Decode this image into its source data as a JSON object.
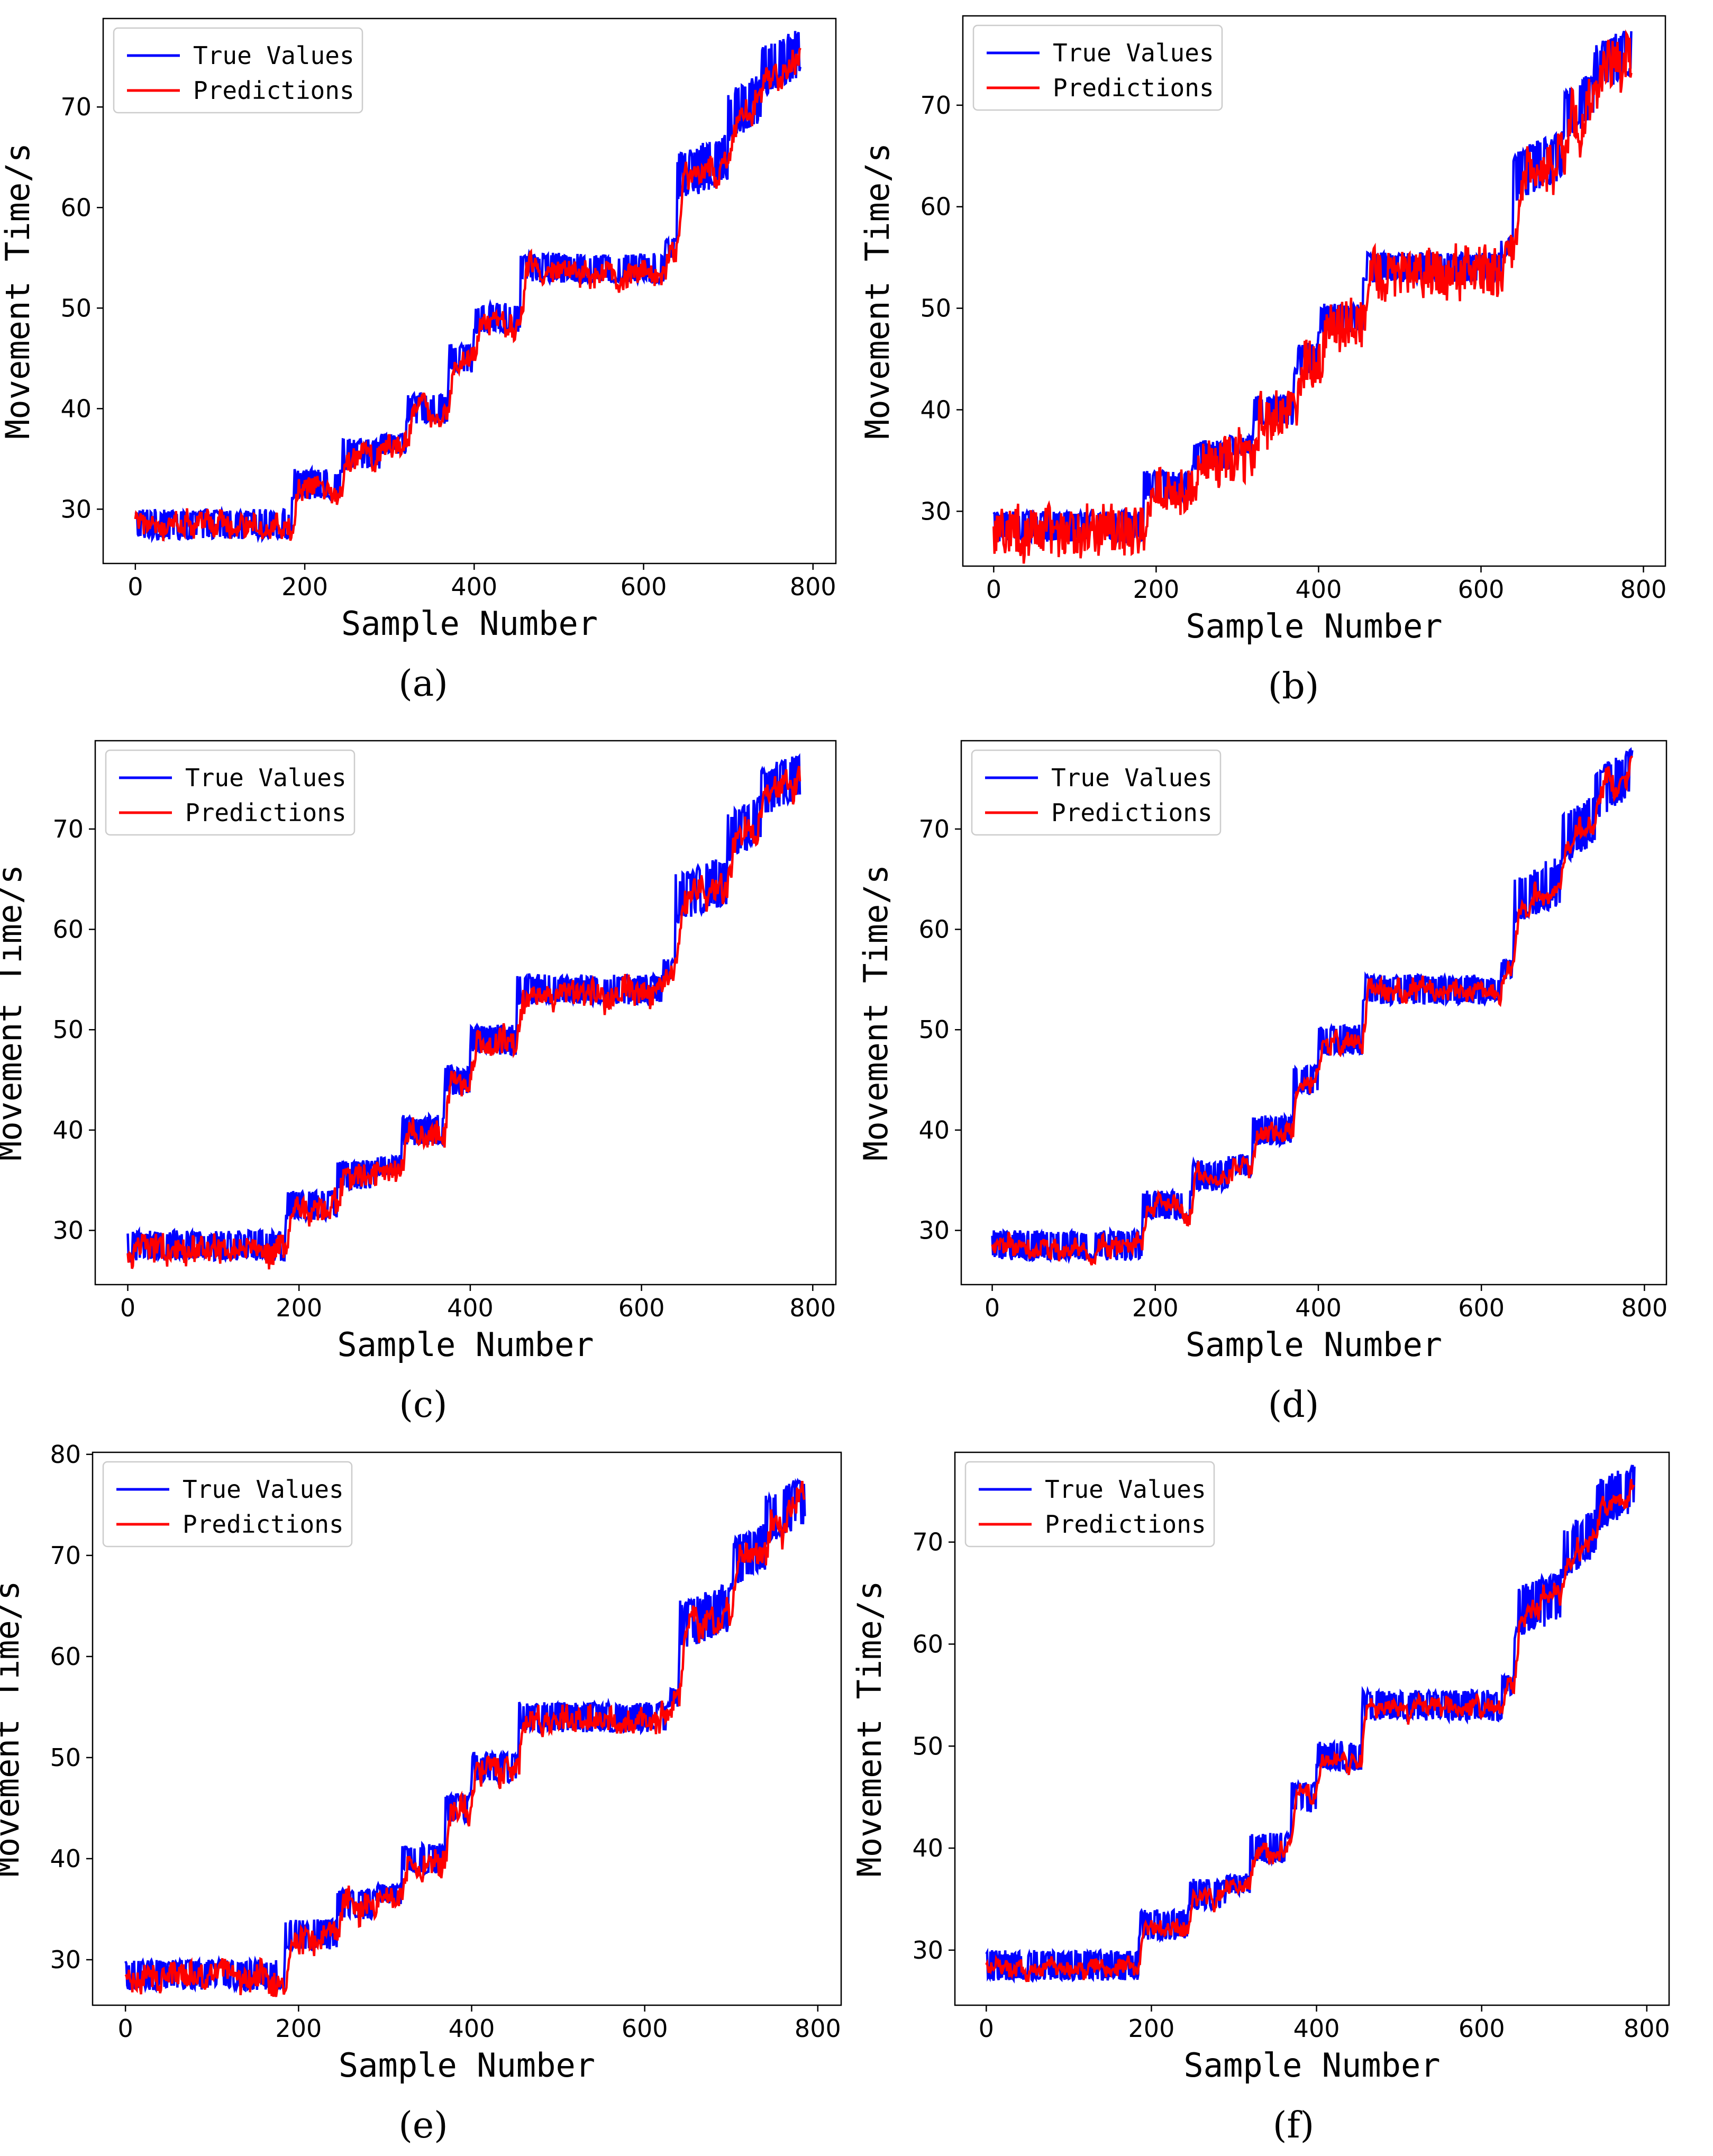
{
  "colors": {
    "true_values": "#0000ff",
    "predictions": "#ff0000"
  },
  "chart_data": [
    {
      "panel": "a",
      "caption": "(a)",
      "type": "line",
      "xlabel": "Sample Number",
      "ylabel": "Movement Time/s",
      "xlim": [
        -38,
        827
      ],
      "ylim": [
        24.6,
        78.8
      ],
      "xticks": [
        "0",
        "200",
        "400",
        "600",
        "800"
      ],
      "yticks": [
        "30",
        "40",
        "50",
        "60",
        "70"
      ],
      "legend": {
        "position": "top-left",
        "entries": [
          "True Values",
          "Predictions"
        ]
      },
      "grid": false,
      "pred_error": 1.0,
      "pred_lag": 4,
      "series": [
        {
          "name": "True Values",
          "color": "#0000ff",
          "segments": [
            [
              0,
              185,
              28.5,
              1.5
            ],
            [
              185,
              245,
              32.5,
              1.5
            ],
            [
              245,
              290,
              35.5,
              1.5
            ],
            [
              290,
              320,
              36.5,
              1.0
            ],
            [
              320,
              370,
              40,
              1.5
            ],
            [
              370,
              400,
              45,
              1.5
            ],
            [
              400,
              455,
              49,
              1.5
            ],
            [
              455,
              625,
              54,
              1.5
            ],
            [
              625,
              640,
              56,
              1.0
            ],
            [
              640,
              700,
              64,
              2.5
            ],
            [
              700,
              740,
              70,
              2.5
            ],
            [
              740,
              785,
              74.5,
              2.5
            ]
          ]
        },
        {
          "name": "Predictions",
          "color": "#ff0000"
        }
      ]
    },
    {
      "panel": "b",
      "caption": "(b)",
      "type": "line",
      "xlabel": "Sample Number",
      "ylabel": "Movement Time/s",
      "xlim": [
        -38,
        827
      ],
      "ylim": [
        24.6,
        78.8
      ],
      "xticks": [
        "0",
        "200",
        "400",
        "600",
        "800"
      ],
      "yticks": [
        "30",
        "40",
        "50",
        "60",
        "70"
      ],
      "legend": {
        "position": "top-left",
        "entries": [
          "True Values",
          "Predictions"
        ]
      },
      "grid": false,
      "pred_error": 2.2,
      "pred_lag": 6,
      "series": [
        {
          "name": "True Values",
          "color": "#0000ff",
          "segments": [
            [
              0,
              185,
              28.5,
              1.5
            ],
            [
              185,
              245,
              32.5,
              1.5
            ],
            [
              245,
              290,
              35.5,
              1.5
            ],
            [
              290,
              320,
              36.5,
              1.0
            ],
            [
              320,
              370,
              40,
              1.5
            ],
            [
              370,
              400,
              45,
              1.5
            ],
            [
              400,
              455,
              49,
              1.5
            ],
            [
              455,
              625,
              54,
              1.5
            ],
            [
              625,
              640,
              56,
              1.0
            ],
            [
              640,
              700,
              64,
              2.5
            ],
            [
              700,
              740,
              70,
              2.5
            ],
            [
              740,
              785,
              74.5,
              2.5
            ]
          ]
        },
        {
          "name": "Predictions",
          "color": "#ff0000"
        }
      ]
    },
    {
      "panel": "c",
      "caption": "(c)",
      "type": "line",
      "xlabel": "Sample Number",
      "ylabel": "Movement Time/s",
      "xlim": [
        -38,
        827
      ],
      "ylim": [
        24.6,
        78.8
      ],
      "xticks": [
        "0",
        "200",
        "400",
        "600",
        "800"
      ],
      "yticks": [
        "30",
        "40",
        "50",
        "60",
        "70"
      ],
      "legend": {
        "position": "top-left",
        "entries": [
          "True Values",
          "Predictions"
        ]
      },
      "grid": false,
      "pred_error": 1.1,
      "pred_lag": 4,
      "series": [
        {
          "name": "True Values",
          "color": "#0000ff",
          "segments": [
            [
              0,
              185,
              28.5,
              1.5
            ],
            [
              185,
              245,
              32.5,
              1.5
            ],
            [
              245,
              290,
              35.5,
              1.5
            ],
            [
              290,
              320,
              36.5,
              1.0
            ],
            [
              320,
              370,
              40,
              1.5
            ],
            [
              370,
              400,
              45,
              1.5
            ],
            [
              400,
              455,
              49,
              1.5
            ],
            [
              455,
              625,
              54,
              1.5
            ],
            [
              625,
              640,
              56,
              1.0
            ],
            [
              640,
              700,
              64,
              2.5
            ],
            [
              700,
              740,
              70,
              2.5
            ],
            [
              740,
              785,
              74.5,
              2.5
            ]
          ]
        },
        {
          "name": "Predictions",
          "color": "#ff0000"
        }
      ]
    },
    {
      "panel": "d",
      "caption": "(d)",
      "type": "line",
      "xlabel": "Sample Number",
      "ylabel": "Movement Time/s",
      "xlim": [
        -38,
        827
      ],
      "ylim": [
        24.6,
        78.8
      ],
      "xticks": [
        "0",
        "200",
        "400",
        "600",
        "800"
      ],
      "yticks": [
        "30",
        "40",
        "50",
        "60",
        "70"
      ],
      "legend": {
        "position": "top-left",
        "entries": [
          "True Values",
          "Predictions"
        ]
      },
      "grid": false,
      "pred_error": 0.7,
      "pred_lag": 3,
      "series": [
        {
          "name": "True Values",
          "color": "#0000ff",
          "segments": [
            [
              0,
              185,
              28.5,
              1.5
            ],
            [
              185,
              245,
              32.5,
              1.5
            ],
            [
              245,
              290,
              35.5,
              1.5
            ],
            [
              290,
              320,
              36.5,
              1.0
            ],
            [
              320,
              370,
              40,
              1.5
            ],
            [
              370,
              400,
              45,
              1.5
            ],
            [
              400,
              455,
              49,
              1.5
            ],
            [
              455,
              625,
              54,
              1.5
            ],
            [
              625,
              640,
              56,
              1.0
            ],
            [
              640,
              700,
              64,
              2.5
            ],
            [
              700,
              740,
              70,
              2.5
            ],
            [
              740,
              785,
              74.5,
              2.5
            ]
          ]
        },
        {
          "name": "Predictions",
          "color": "#ff0000"
        }
      ]
    },
    {
      "panel": "e",
      "caption": "(e)",
      "type": "line",
      "xlabel": "Sample Number",
      "ylabel": "Movement Time/s",
      "xlim": [
        -38,
        827
      ],
      "ylim": [
        25.5,
        80.2
      ],
      "xticks": [
        "0",
        "200",
        "400",
        "600",
        "800"
      ],
      "yticks": [
        "30",
        "40",
        "50",
        "60",
        "70",
        "80"
      ],
      "legend": {
        "position": "top-left",
        "entries": [
          "True Values",
          "Predictions"
        ]
      },
      "grid": false,
      "pred_error": 1.1,
      "pred_lag": 4,
      "series": [
        {
          "name": "True Values",
          "color": "#0000ff",
          "segments": [
            [
              0,
              185,
              28.5,
              1.5
            ],
            [
              185,
              245,
              32.5,
              1.5
            ],
            [
              245,
              290,
              35.5,
              1.5
            ],
            [
              290,
              320,
              36.5,
              1.0
            ],
            [
              320,
              370,
              40,
              1.5
            ],
            [
              370,
              400,
              45,
              1.5
            ],
            [
              400,
              455,
              49,
              1.5
            ],
            [
              455,
              625,
              54,
              1.5
            ],
            [
              625,
              640,
              56,
              1.0
            ],
            [
              640,
              700,
              64,
              2.5
            ],
            [
              700,
              740,
              70,
              2.5
            ],
            [
              740,
              785,
              74.5,
              2.5
            ]
          ]
        },
        {
          "name": "Predictions",
          "color": "#ff0000"
        }
      ]
    },
    {
      "panel": "f",
      "caption": "(f)",
      "type": "line",
      "xlabel": "Sample Number",
      "ylabel": "Movement Time/s",
      "xlim": [
        -38,
        827
      ],
      "ylim": [
        24.6,
        78.8
      ],
      "xticks": [
        "0",
        "200",
        "400",
        "600",
        "800"
      ],
      "yticks": [
        "30",
        "40",
        "50",
        "60",
        "70"
      ],
      "legend": {
        "position": "top-left",
        "entries": [
          "True Values",
          "Predictions"
        ]
      },
      "grid": false,
      "pred_error": 0.6,
      "pred_lag": 3,
      "series": [
        {
          "name": "True Values",
          "color": "#0000ff",
          "segments": [
            [
              0,
              185,
              28.5,
              1.5
            ],
            [
              185,
              245,
              32.5,
              1.5
            ],
            [
              245,
              290,
              35.5,
              1.5
            ],
            [
              290,
              320,
              36.5,
              1.0
            ],
            [
              320,
              370,
              40,
              1.5
            ],
            [
              370,
              400,
              45,
              1.5
            ],
            [
              400,
              455,
              49,
              1.5
            ],
            [
              455,
              625,
              54,
              1.5
            ],
            [
              625,
              640,
              56,
              1.0
            ],
            [
              640,
              700,
              64,
              2.5
            ],
            [
              700,
              740,
              70,
              2.5
            ],
            [
              740,
              785,
              74.5,
              2.5
            ]
          ]
        },
        {
          "name": "Predictions",
          "color": "#ff0000"
        }
      ]
    }
  ]
}
